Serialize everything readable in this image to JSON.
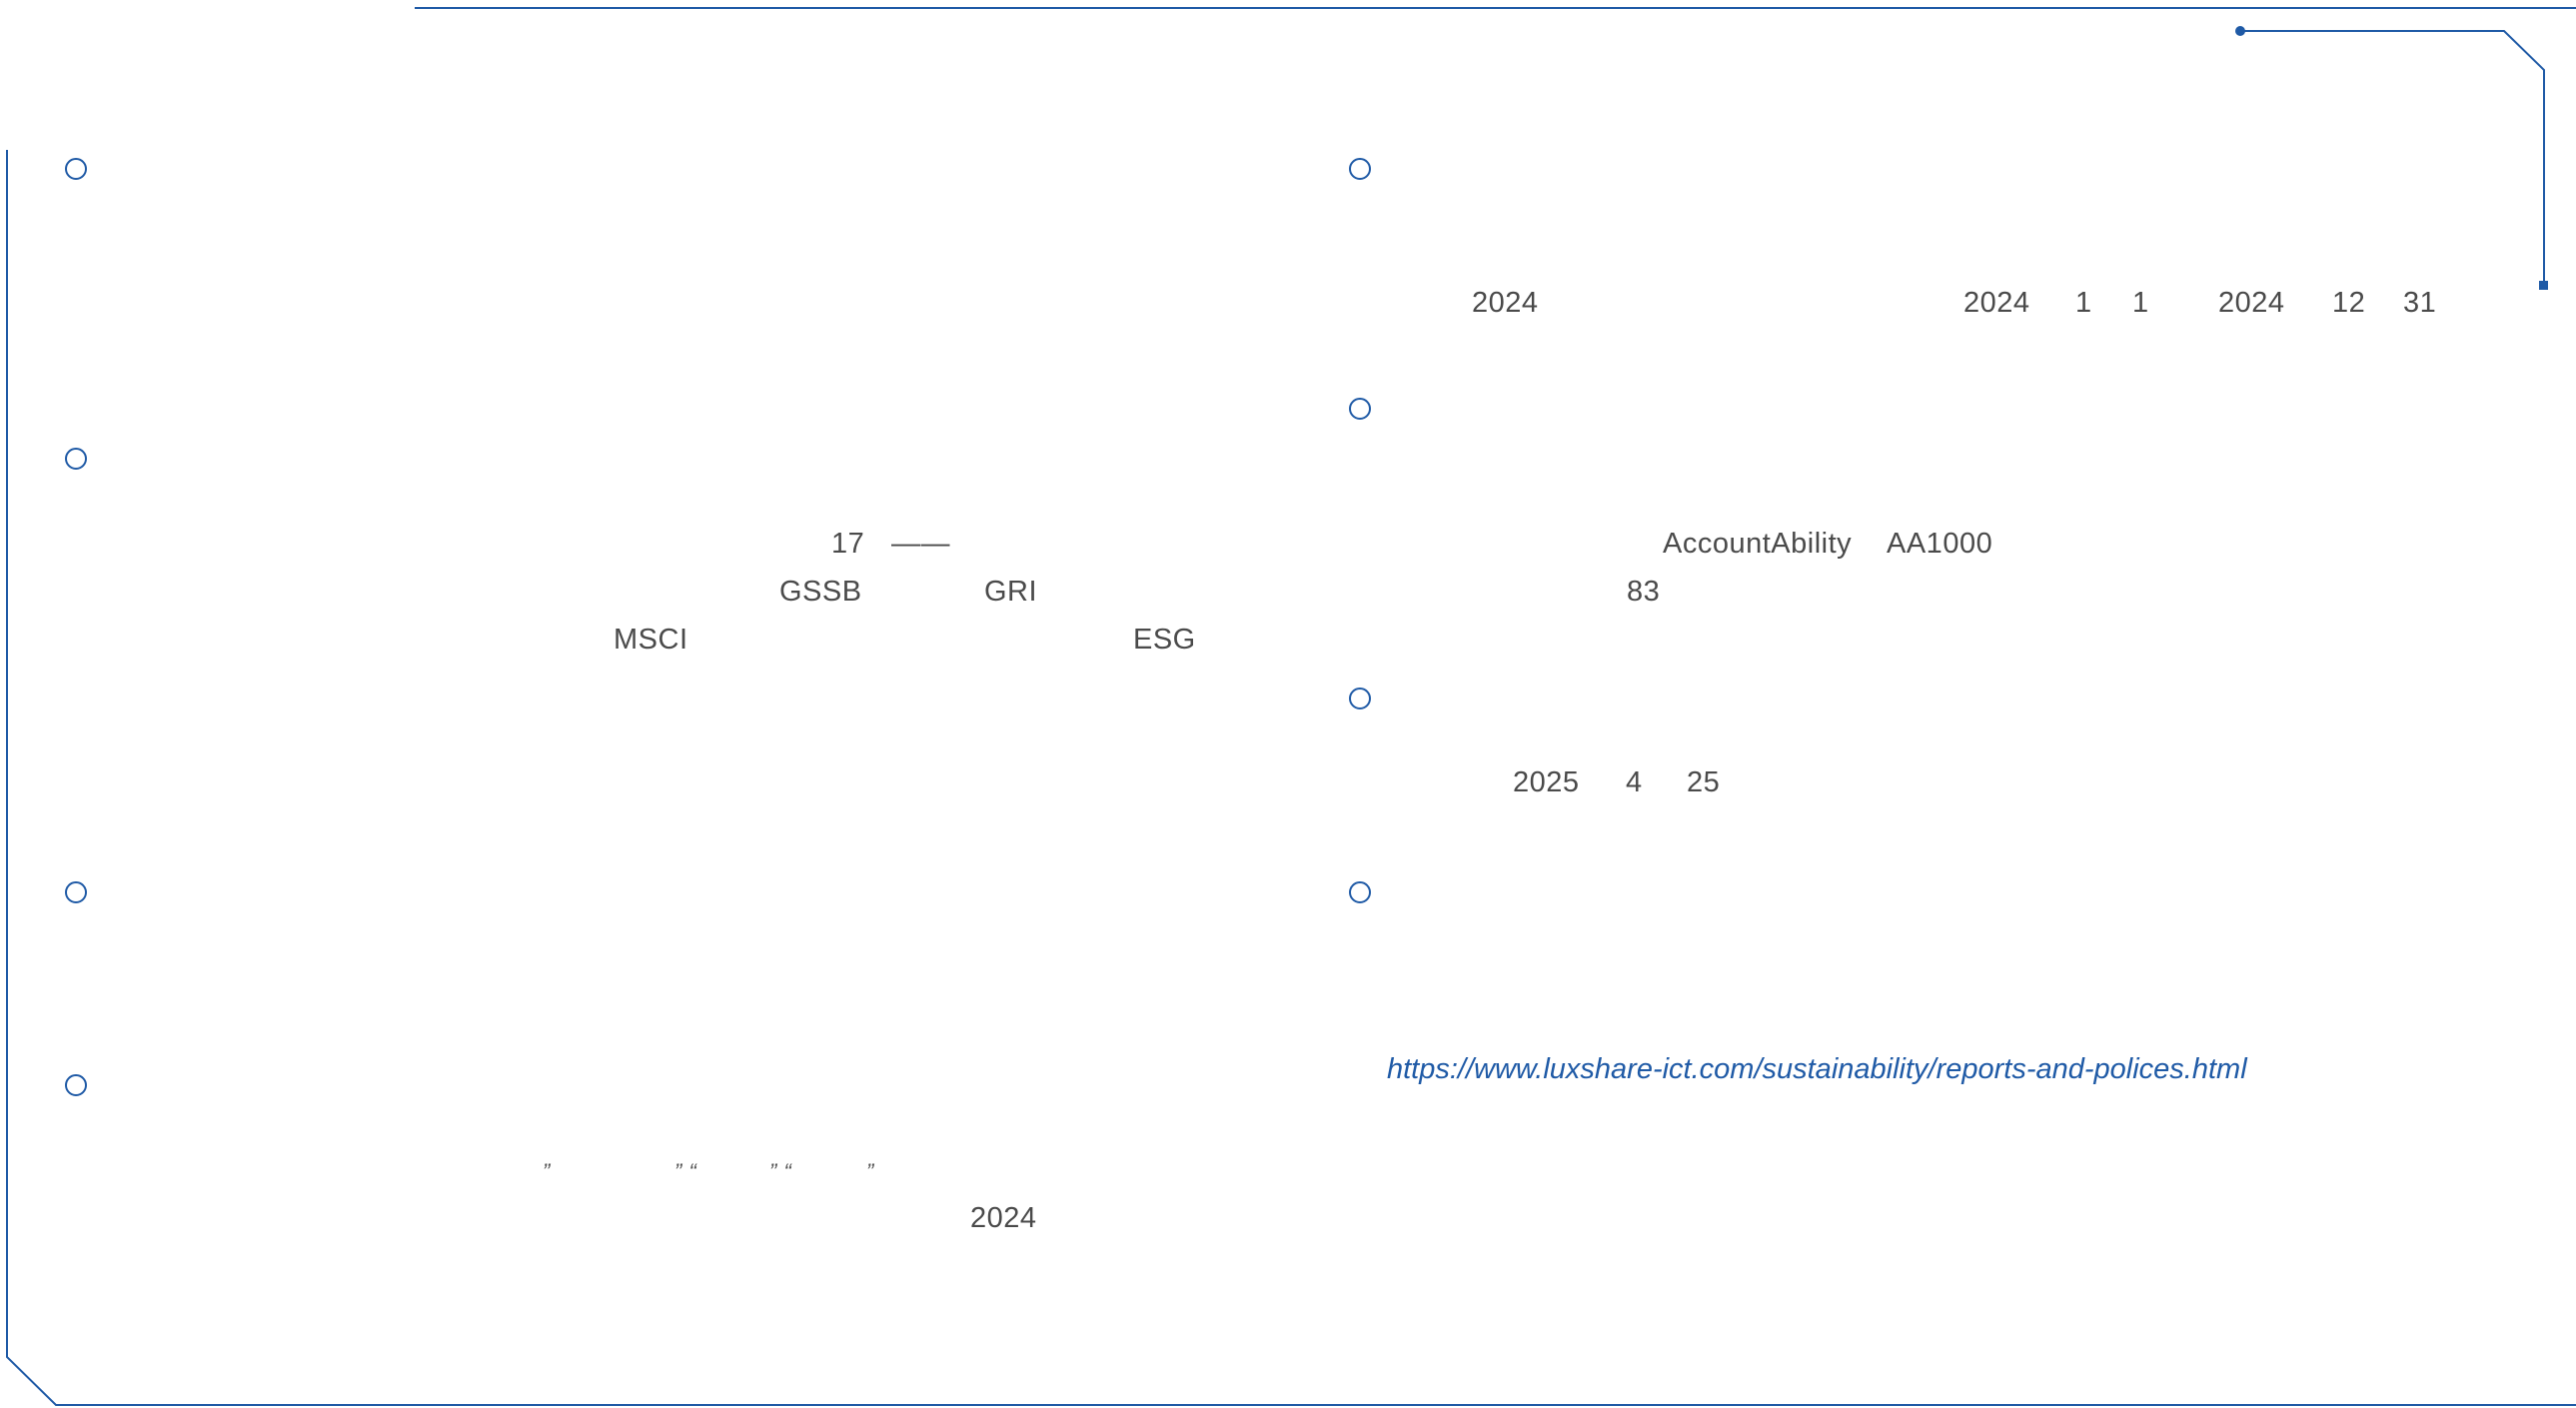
{
  "colors": {
    "accent": "#1f5aa6",
    "text": "#4a4a4a",
    "background": "#ffffff"
  },
  "left_column": {
    "section_2": {
      "number": "17",
      "dash": "——",
      "standard_1": "GSSB",
      "standard_2": "GRI",
      "rating_1": "MSCI",
      "rating_2": "ESG"
    },
    "section_4": {
      "quote_1": "”",
      "quote_2": "” “",
      "quote_3": "” “",
      "quote_4": "”",
      "year": "2024"
    }
  },
  "right_column": {
    "period": {
      "report_year": "2024",
      "start_year": "2024",
      "start_month": "1",
      "start_day": "1",
      "end_year": "2024",
      "end_month": "12",
      "end_day": "31"
    },
    "assurance": {
      "org": "AccountAbility",
      "standard": "AA1000",
      "count": "83"
    },
    "publish_date": {
      "year": "2025",
      "month": "4",
      "day": "25"
    },
    "access": {
      "url": "https://www.luxshare-ict.com/sustainability/reports-and-polices.html"
    }
  }
}
